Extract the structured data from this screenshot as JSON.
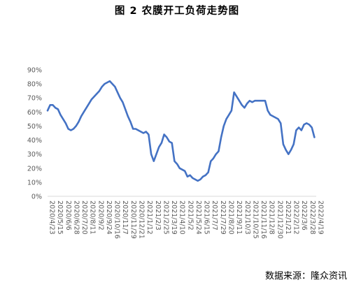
{
  "source_note": "数据来源：隆众资讯",
  "chart_data": {
    "type": "line",
    "title": "图 2 农膜开工负荷走势图",
    "xlabel": "",
    "ylabel": "",
    "y_unit": "%",
    "ylim": [
      0,
      90
    ],
    "y_ticks": [
      0,
      10,
      20,
      30,
      40,
      50,
      60,
      70,
      80,
      90
    ],
    "y_tick_labels": [
      "0%",
      "10%",
      "20%",
      "30%",
      "40%",
      "50%",
      "60%",
      "70%",
      "80%",
      "90%"
    ],
    "grid": false,
    "legend": "none",
    "line_color": "#4472C4",
    "x_tick_labels": [
      "2020/4/23",
      "2020/5/15",
      "2020/6/6",
      "2020/6/28",
      "2020/7/20",
      "2020/8/11",
      "2020/9/2",
      "2020/9/24",
      "2020/10/16",
      "2020/11/7",
      "2020/11/29",
      "2020/12/21",
      "2021/1/12",
      "2021/2/3",
      "2021/2/25",
      "2021/3/19",
      "2021/4/10",
      "2021/5/2",
      "2021/5/24",
      "2021/6/15",
      "2021/7/7",
      "2021/7/29",
      "2021/8/20",
      "2021/9/11",
      "2021/10/3",
      "2021/10/25",
      "2021/11/16",
      "2021/12/8",
      "2021/12/30",
      "2022/1/21",
      "2022/2/12",
      "2022/3/6",
      "2022/3/28",
      "2022/4/19"
    ],
    "series": [
      {
        "values": [
          [
            "2020/4/23",
            61
          ],
          [
            "2020/4/30",
            65
          ],
          [
            "2020/5/7",
            65
          ],
          [
            "2020/5/14",
            63
          ],
          [
            "2020/5/21",
            62
          ],
          [
            "2020/5/28",
            58
          ],
          [
            "2020/6/4",
            55
          ],
          [
            "2020/6/11",
            52
          ],
          [
            "2020/6/18",
            48
          ],
          [
            "2020/6/25",
            47
          ],
          [
            "2020/7/2",
            48
          ],
          [
            "2020/7/9",
            50
          ],
          [
            "2020/7/16",
            53
          ],
          [
            "2020/7/23",
            57
          ],
          [
            "2020/7/30",
            60
          ],
          [
            "2020/8/6",
            63
          ],
          [
            "2020/8/13",
            66
          ],
          [
            "2020/8/20",
            69
          ],
          [
            "2020/8/27",
            71
          ],
          [
            "2020/9/3",
            73
          ],
          [
            "2020/9/10",
            75
          ],
          [
            "2020/9/17",
            78
          ],
          [
            "2020/9/24",
            80
          ],
          [
            "2020/10/1",
            81
          ],
          [
            "2020/10/8",
            82
          ],
          [
            "2020/10/15",
            80
          ],
          [
            "2020/10/22",
            78
          ],
          [
            "2020/10/29",
            74
          ],
          [
            "2020/11/5",
            70
          ],
          [
            "2020/11/12",
            67
          ],
          [
            "2020/11/19",
            62
          ],
          [
            "2020/11/26",
            57
          ],
          [
            "2020/12/3",
            53
          ],
          [
            "2020/12/10",
            48
          ],
          [
            "2020/12/17",
            48
          ],
          [
            "2020/12/24",
            47
          ],
          [
            "2020/12/31",
            46
          ],
          [
            "2021/1/7",
            45
          ],
          [
            "2021/1/14",
            46
          ],
          [
            "2021/1/21",
            44
          ],
          [
            "2021/1/28",
            30
          ],
          [
            "2021/2/4",
            25
          ],
          [
            "2021/2/11",
            30
          ],
          [
            "2021/2/18",
            35
          ],
          [
            "2021/2/25",
            38
          ],
          [
            "2021/3/4",
            44
          ],
          [
            "2021/3/11",
            42
          ],
          [
            "2021/3/18",
            39
          ],
          [
            "2021/3/25",
            38
          ],
          [
            "2021/4/1",
            25
          ],
          [
            "2021/4/8",
            23
          ],
          [
            "2021/4/15",
            20
          ],
          [
            "2021/4/22",
            19
          ],
          [
            "2021/4/29",
            18
          ],
          [
            "2021/5/6",
            14
          ],
          [
            "2021/5/13",
            15
          ],
          [
            "2021/5/20",
            13
          ],
          [
            "2021/5/27",
            12
          ],
          [
            "2021/6/3",
            11
          ],
          [
            "2021/6/10",
            12
          ],
          [
            "2021/6/17",
            14
          ],
          [
            "2021/6/24",
            15
          ],
          [
            "2021/7/1",
            17
          ],
          [
            "2021/7/8",
            25
          ],
          [
            "2021/7/15",
            27
          ],
          [
            "2021/7/22",
            30
          ],
          [
            "2021/7/29",
            32
          ],
          [
            "2021/8/5",
            42
          ],
          [
            "2021/8/12",
            50
          ],
          [
            "2021/8/19",
            55
          ],
          [
            "2021/8/26",
            58
          ],
          [
            "2021/9/2",
            61
          ],
          [
            "2021/9/9",
            74
          ],
          [
            "2021/9/16",
            71
          ],
          [
            "2021/9/23",
            68
          ],
          [
            "2021/9/30",
            65
          ],
          [
            "2021/10/7",
            63
          ],
          [
            "2021/10/14",
            66
          ],
          [
            "2021/10/21",
            68
          ],
          [
            "2021/10/28",
            67
          ],
          [
            "2021/11/4",
            68
          ],
          [
            "2021/11/11",
            68
          ],
          [
            "2021/11/18",
            68
          ],
          [
            "2021/11/25",
            68
          ],
          [
            "2021/12/2",
            68
          ],
          [
            "2021/12/9",
            61
          ],
          [
            "2021/12/16",
            58
          ],
          [
            "2021/12/23",
            57
          ],
          [
            "2021/12/30",
            56
          ],
          [
            "2022/1/6",
            55
          ],
          [
            "2022/1/13",
            52
          ],
          [
            "2022/1/20",
            37
          ],
          [
            "2022/1/27",
            33
          ],
          [
            "2022/2/3",
            30
          ],
          [
            "2022/2/10",
            33
          ],
          [
            "2022/2/17",
            37
          ],
          [
            "2022/2/24",
            47
          ],
          [
            "2022/3/3",
            49
          ],
          [
            "2022/3/10",
            47
          ],
          [
            "2022/3/17",
            51
          ],
          [
            "2022/3/24",
            52
          ],
          [
            "2022/3/31",
            51
          ],
          [
            "2022/4/7",
            49
          ],
          [
            "2022/4/14",
            42
          ]
        ]
      }
    ]
  }
}
